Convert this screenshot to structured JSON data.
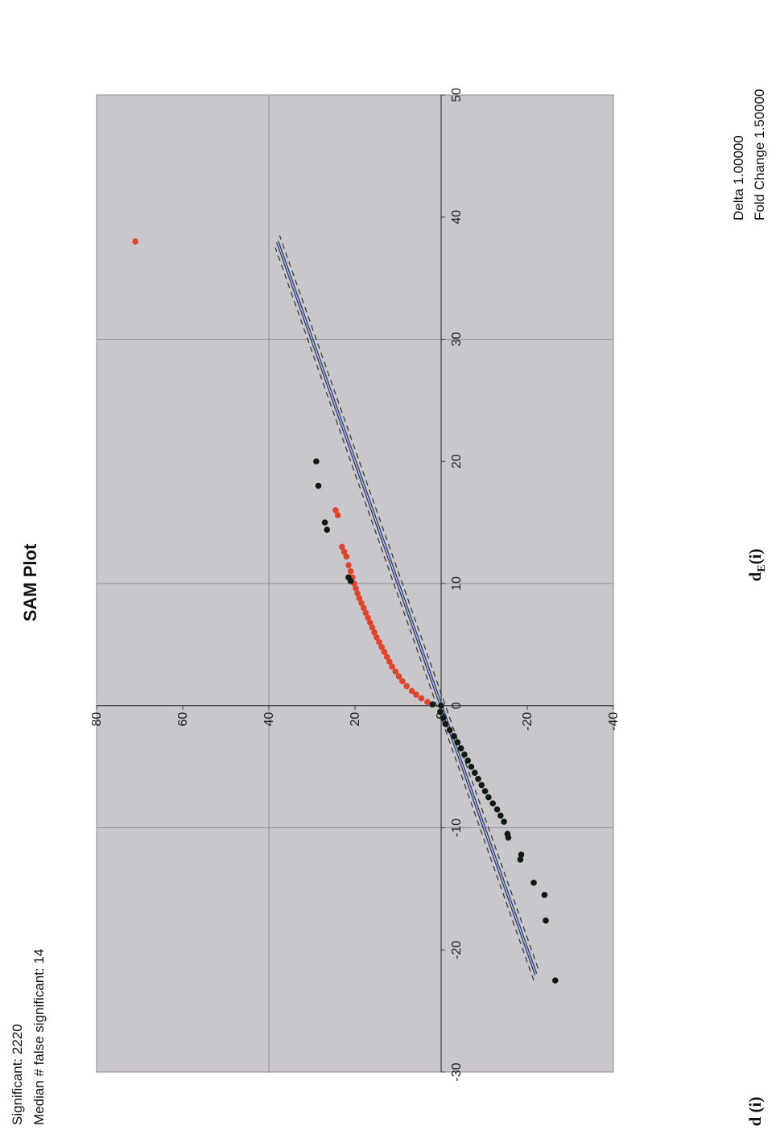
{
  "header": {
    "significant": "Significant: 2220",
    "median_false": "Median # false significant: 14",
    "delta": "Delta 1.00000",
    "fold_change": "Fold Change 1.50000"
  },
  "colors": {
    "plot_bg": "#c9c7cc",
    "grid": "#8e8d91",
    "zero_axis": "#3a3a3a",
    "significant_up": "#e0442b",
    "nonsignificant": "#0f1a12",
    "center_line": "#2b3f7a",
    "band_line": "#333333"
  },
  "chart_data": {
    "type": "scatter",
    "title": "SAM Plot",
    "xlabel": "d",
    "xlabel_sub": "E",
    "xlabel_suffix": "(i)",
    "ylabel": "d (i)",
    "xlim": [
      -30,
      50
    ],
    "ylim": [
      -40,
      80
    ],
    "x_ticks": [
      "-30",
      "-20",
      "-10",
      "0",
      "10",
      "20",
      "30",
      "40",
      "50"
    ],
    "y_ticks": [
      "-40",
      "-20",
      "0",
      "20",
      "40",
      "60",
      "80"
    ],
    "x_tick_values": [
      -30,
      -20,
      -10,
      0,
      10,
      20,
      30,
      40,
      50
    ],
    "y_tick_values": [
      -40,
      -20,
      0,
      20,
      40,
      60,
      80
    ],
    "x_grid_values": [
      -30,
      -10,
      10,
      30,
      50
    ],
    "y_grid_values": [
      -40,
      0,
      40,
      80
    ],
    "grid": true,
    "reference_lines": {
      "center": {
        "x": [
          -22,
          38
        ],
        "y": [
          -22,
          38
        ]
      },
      "upper_band": {
        "x": [
          -22.5,
          37.5
        ],
        "y": [
          -21.5,
          38.5
        ]
      },
      "lower_band": {
        "x": [
          -21.5,
          38.5
        ],
        "y": [
          -22.5,
          37.5
        ]
      }
    },
    "series": [
      {
        "color_key": "significant_up",
        "points": [
          [
            38,
            71
          ],
          [
            16,
            24.5
          ],
          [
            15.6,
            24
          ],
          [
            13,
            23
          ],
          [
            12.6,
            22.5
          ],
          [
            12.2,
            22
          ],
          [
            11.5,
            21.5
          ],
          [
            11,
            21
          ],
          [
            10.5,
            20.6
          ],
          [
            10,
            20.2
          ],
          [
            9.6,
            19.8
          ],
          [
            9.2,
            19.4
          ],
          [
            8.8,
            19
          ],
          [
            8.4,
            18.5
          ],
          [
            8,
            18
          ],
          [
            7.6,
            17.5
          ],
          [
            7.2,
            17
          ],
          [
            6.8,
            16.5
          ],
          [
            6.4,
            16
          ],
          [
            6,
            15.5
          ],
          [
            5.6,
            15
          ],
          [
            5.2,
            14.4
          ],
          [
            4.8,
            13.8
          ],
          [
            4.4,
            13.2
          ],
          [
            4,
            12.6
          ],
          [
            3.6,
            12
          ],
          [
            3.2,
            11.4
          ],
          [
            2.8,
            10.6
          ],
          [
            2.4,
            9.8
          ],
          [
            2,
            9
          ],
          [
            1.6,
            8
          ],
          [
            1.2,
            6.8
          ],
          [
            0.9,
            5.8
          ],
          [
            0.6,
            4.6
          ],
          [
            0.3,
            3.2
          ]
        ]
      },
      {
        "color_key": "nonsignificant",
        "points": [
          [
            20,
            29
          ],
          [
            18,
            28.5
          ],
          [
            15,
            27
          ],
          [
            14.4,
            26.5
          ],
          [
            10.5,
            21.5
          ],
          [
            10.2,
            21
          ],
          [
            0,
            0
          ],
          [
            0.1,
            2
          ],
          [
            -0.5,
            0.2
          ],
          [
            -1,
            -0.5
          ],
          [
            -1.5,
            -1
          ],
          [
            -2,
            -2
          ],
          [
            -2.5,
            -3
          ],
          [
            -3,
            -3.8
          ],
          [
            -3.5,
            -4.6
          ],
          [
            -4,
            -5.4
          ],
          [
            -4.5,
            -6.2
          ],
          [
            -5,
            -7
          ],
          [
            -5.5,
            -7.8
          ],
          [
            -6,
            -8.6
          ],
          [
            -6.5,
            -9.4
          ],
          [
            -7,
            -10.2
          ],
          [
            -7.5,
            -11
          ],
          [
            -8,
            -12
          ],
          [
            -8.5,
            -13
          ],
          [
            -9,
            -13.8
          ],
          [
            -9.5,
            -14.6
          ],
          [
            -10.5,
            -15.4
          ],
          [
            -10.8,
            -15.6
          ],
          [
            -12.2,
            -18.6
          ],
          [
            -12.6,
            -18.4
          ],
          [
            -14.5,
            -21.5
          ],
          [
            -15.5,
            -24
          ],
          [
            -17.6,
            -24.3
          ],
          [
            -22.5,
            -26.5
          ]
        ]
      }
    ]
  }
}
